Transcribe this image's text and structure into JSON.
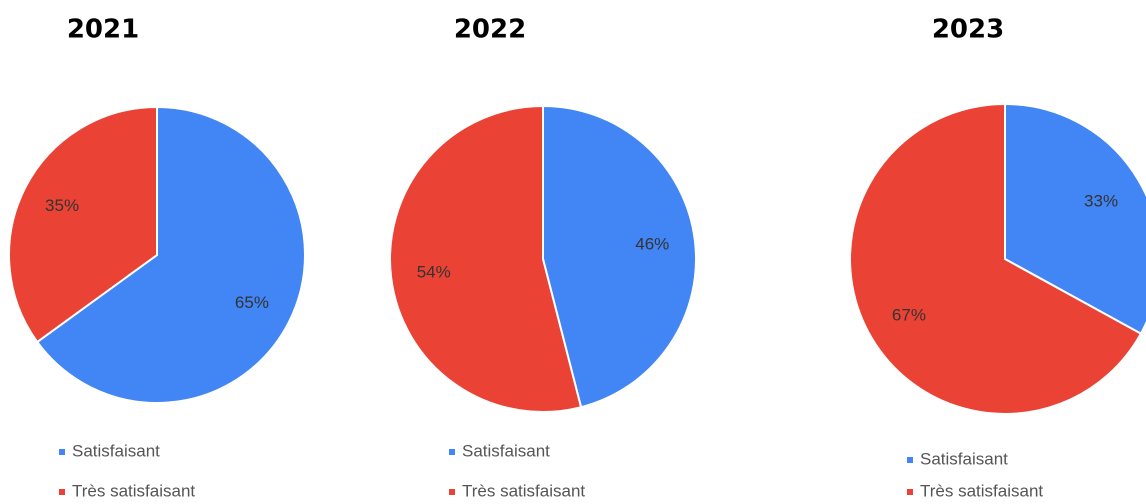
{
  "chart_data": [
    {
      "type": "pie",
      "title": "2021",
      "categories": [
        "Satisfaisant",
        "Très satisfaisant"
      ],
      "values": [
        65,
        35
      ],
      "value_labels": [
        "65%",
        "35%"
      ],
      "colors": [
        "#4285f4",
        "#ea4335"
      ]
    },
    {
      "type": "pie",
      "title": "2022",
      "categories": [
        "Satisfaisant",
        "Très satisfaisant"
      ],
      "values": [
        46,
        54
      ],
      "value_labels": [
        "46%",
        "54%"
      ],
      "colors": [
        "#4285f4",
        "#ea4335"
      ]
    },
    {
      "type": "pie",
      "title": "2023",
      "categories": [
        "Satisfaisant",
        "Très satisfaisant"
      ],
      "values": [
        33,
        67
      ],
      "value_labels": [
        "33%",
        "67%"
      ],
      "colors": [
        "#4285f4",
        "#ea4335"
      ]
    }
  ]
}
